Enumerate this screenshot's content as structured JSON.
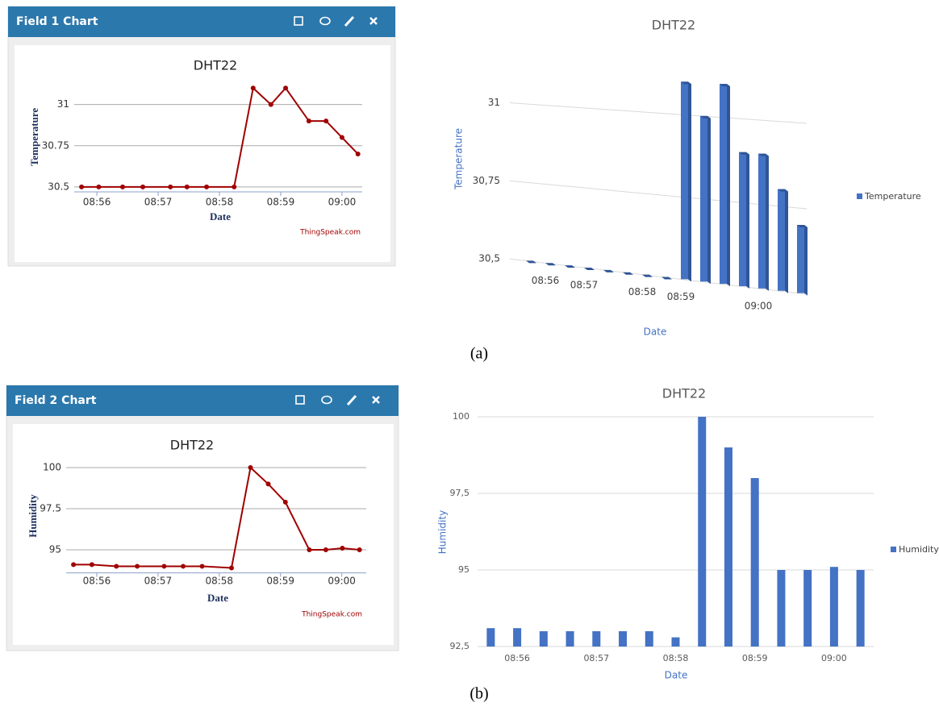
{
  "chart_data": [
    {
      "type": "line",
      "panel_title": "Field 1 Chart",
      "title": "DHT22",
      "x_label": "Date",
      "y_label": "Temperature",
      "credit": "ThingSpeak.com",
      "x": [
        535.75,
        536.03,
        536.42,
        536.75,
        537.2,
        537.47,
        537.79,
        538.24,
        538.55,
        538.84,
        539.08,
        539.46,
        539.74,
        540.0,
        540.26
      ],
      "values": [
        30.5,
        30.5,
        30.5,
        30.5,
        30.5,
        30.5,
        30.5,
        30.5,
        31.1,
        31.0,
        31.1,
        30.9,
        30.9,
        30.8,
        30.7
      ],
      "color": "#a00000",
      "xlim": [
        535.63,
        540.33
      ],
      "xticks": [
        {
          "value": 536,
          "label": "08:56"
        },
        {
          "value": 537,
          "label": "08:57"
        },
        {
          "value": 538,
          "label": "08:58"
        },
        {
          "value": 539,
          "label": "08:59"
        },
        {
          "value": 540,
          "label": "09:00"
        }
      ],
      "ylim": [
        30.47,
        31.15
      ],
      "yticks": [
        30.5,
        30.75,
        31
      ],
      "grid": true
    },
    {
      "type": "bar",
      "3d": true,
      "title": "DHT22",
      "x_label": "Date",
      "y_label": "Temperature",
      "categories": [
        null,
        "08:56",
        null,
        "08:57",
        null,
        null,
        "08:58",
        null,
        "08:59",
        null,
        null,
        null,
        "09:00",
        null,
        null
      ],
      "series": [
        {
          "name": "Temperature",
          "color": "#4472c4",
          "values": [
            30.5,
            30.5,
            30.5,
            30.5,
            30.5,
            30.5,
            30.5,
            30.5,
            31.1,
            31.0,
            31.1,
            30.9,
            30.9,
            30.8,
            30.7
          ]
        }
      ],
      "ylim": [
        30.5,
        31.15
      ],
      "yticks": [
        {
          "value": 30.5,
          "label": "30,5"
        },
        {
          "value": 30.75,
          "label": "30,75"
        },
        31
      ],
      "grid": true,
      "legend": "right"
    },
    {
      "type": "line",
      "panel_title": "Field 2 Chart",
      "title": "DHT22",
      "x_label": "Date",
      "y_label": "Humidity",
      "credit": "ThingSpeak.com",
      "x": [
        535.62,
        535.92,
        536.32,
        536.66,
        537.1,
        537.41,
        537.72,
        538.2,
        538.51,
        538.8,
        539.08,
        539.47,
        539.74,
        540.01,
        540.29
      ],
      "values": [
        94.1,
        94.1,
        94.0,
        94.0,
        94.0,
        94.0,
        94.0,
        93.9,
        100.0,
        99.0,
        97.9,
        95.0,
        95.0,
        95.1,
        95.0
      ],
      "color": "#a00000",
      "xlim": [
        535.5,
        540.4
      ],
      "xticks": [
        {
          "value": 536,
          "label": "08:56"
        },
        {
          "value": 537,
          "label": "08:57"
        },
        {
          "value": 538,
          "label": "08:58"
        },
        {
          "value": 539,
          "label": "08:59"
        },
        {
          "value": 540,
          "label": "09:00"
        }
      ],
      "ylim": [
        93.6,
        100.5
      ],
      "yticks": [
        95,
        97.5,
        100
      ],
      "grid": true
    },
    {
      "type": "bar",
      "title": "DHT22",
      "x_label": "Date",
      "y_label": "Humidity",
      "categories": [
        null,
        "08:56",
        null,
        null,
        "08:57",
        null,
        null,
        "08:58",
        null,
        null,
        "08:59",
        null,
        null,
        "09:00",
        null
      ],
      "series": [
        {
          "name": "Humidity",
          "color": "#4472c4",
          "values": [
            93.1,
            93.1,
            93.0,
            93.0,
            93.0,
            93.0,
            93.0,
            92.8,
            100.0,
            99.0,
            98.0,
            95.0,
            95.0,
            95.1,
            95.0
          ]
        }
      ],
      "ylim": [
        92.5,
        100
      ],
      "yticks": [
        {
          "value": 92.5,
          "label": "92,5"
        },
        95,
        {
          "value": 97.5,
          "label": "97,5"
        },
        100
      ],
      "grid": true,
      "legend": "right"
    }
  ],
  "captions": [
    "(a)",
    "(b)"
  ]
}
